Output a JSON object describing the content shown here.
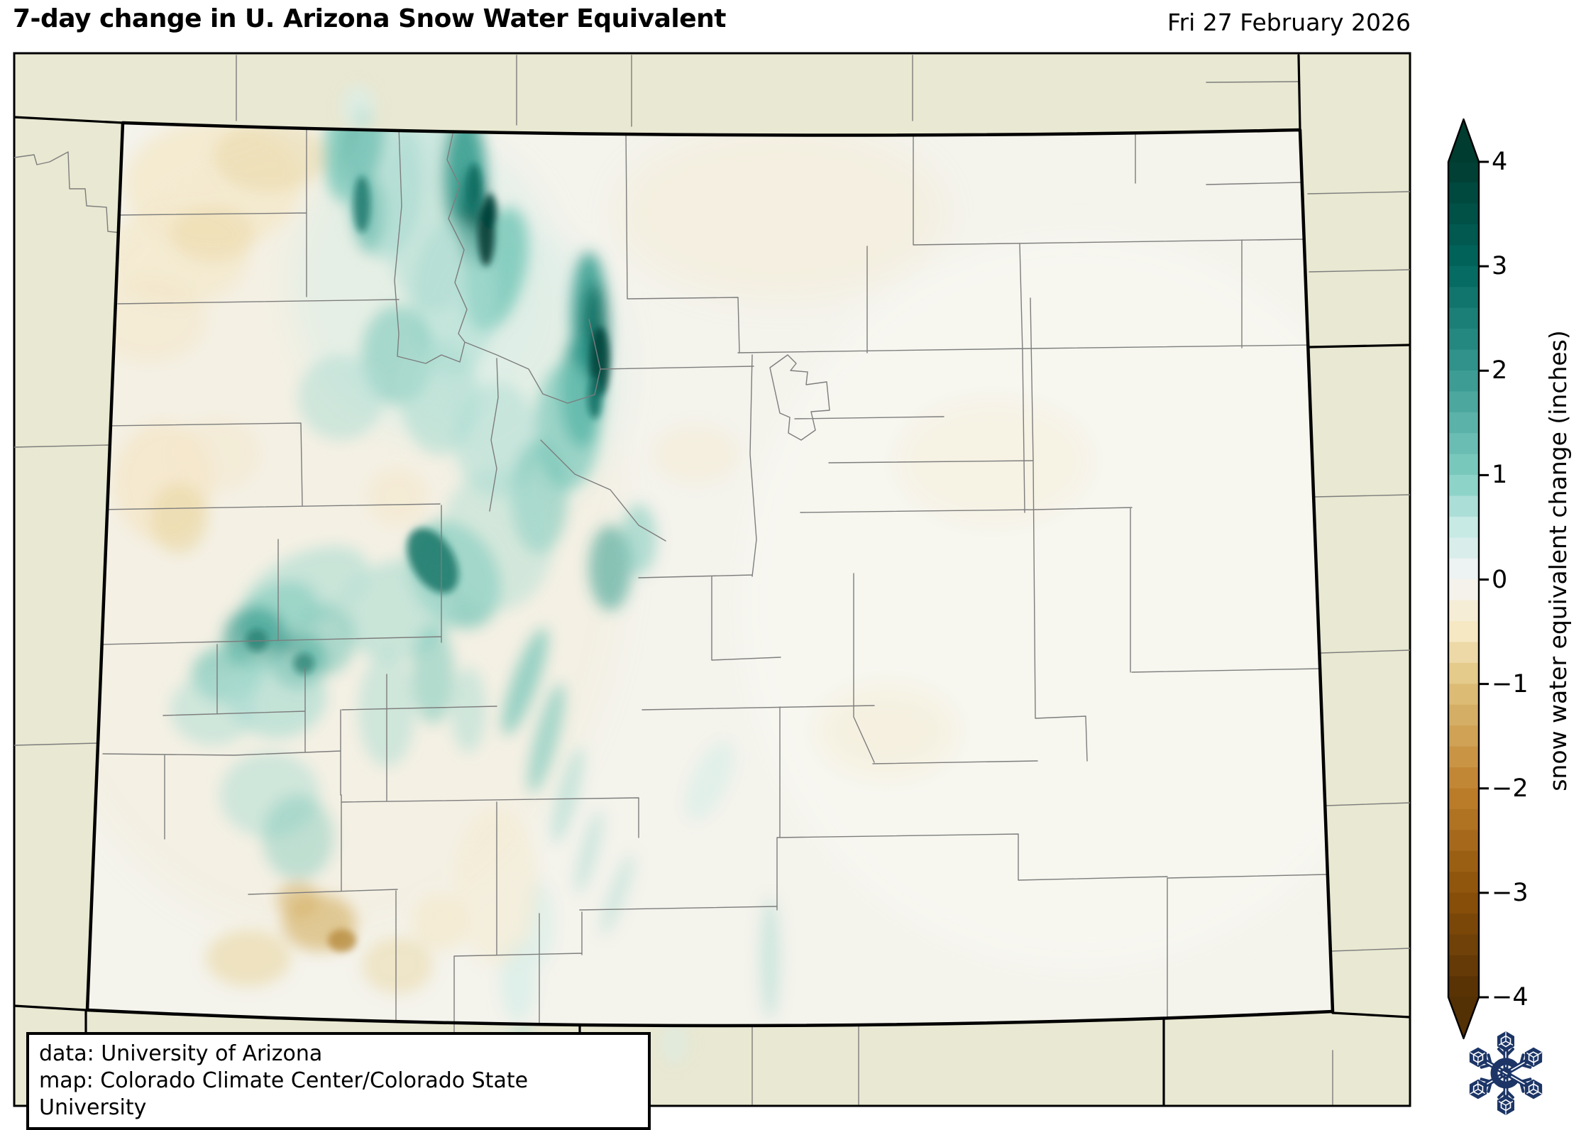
{
  "header": {
    "title": "7-day change in U. Arizona Snow Water Equivalent",
    "date": "Fri 27 February 2026"
  },
  "attribution": {
    "data_source": "data: University of Arizona",
    "map_credit": "map: Colorado Climate Center/Colorado State University"
  },
  "colorbar": {
    "axis_label": "snow water equivalent change (inches)",
    "unit": "inches",
    "min": -4,
    "max": 4,
    "cell_step": 0.2,
    "ticks": [
      {
        "value": 4,
        "label": "4"
      },
      {
        "value": 3,
        "label": "3"
      },
      {
        "value": 2,
        "label": "2"
      },
      {
        "value": 1,
        "label": "1"
      },
      {
        "value": 0,
        "label": "0"
      },
      {
        "value": -1,
        "label": "−1"
      },
      {
        "value": -2,
        "label": "−2"
      },
      {
        "value": -3,
        "label": "−3"
      },
      {
        "value": -4,
        "label": "−4"
      }
    ],
    "gradient_stops": [
      {
        "value": -4,
        "color": "#543005"
      },
      {
        "value": -3,
        "color": "#8c510a"
      },
      {
        "value": -2,
        "color": "#bf812d"
      },
      {
        "value": -1,
        "color": "#dfc27d"
      },
      {
        "value": -0.5,
        "color": "#f6e8c3"
      },
      {
        "value": 0,
        "color": "#f5f5f5"
      },
      {
        "value": 0.5,
        "color": "#c7eae5"
      },
      {
        "value": 1,
        "color": "#80cdc1"
      },
      {
        "value": 2,
        "color": "#35978f"
      },
      {
        "value": 3,
        "color": "#01665e"
      },
      {
        "value": 4,
        "color": "#003c30"
      }
    ]
  },
  "palette": {
    "exterior": "#e9e8d2",
    "state-base": "#f4f3ec",
    "county-line": "#7d7d7d",
    "state-line": "#000000",
    "frame-line": "#000000",
    "logo-navy": "#1c3566",
    "t1": "#daeee8",
    "t2": "#abdcd1",
    "t3": "#72c5b7",
    "t4": "#2f9a8c",
    "t5": "#0f6f63",
    "t6": "#07443c",
    "n1": "#f4e8cb",
    "n2": "#ead7a4",
    "n3": "#d6b269",
    "n4": "#b78b3c"
  },
  "logo": {
    "name": "Colorado Climate Center snowflake logo"
  }
}
